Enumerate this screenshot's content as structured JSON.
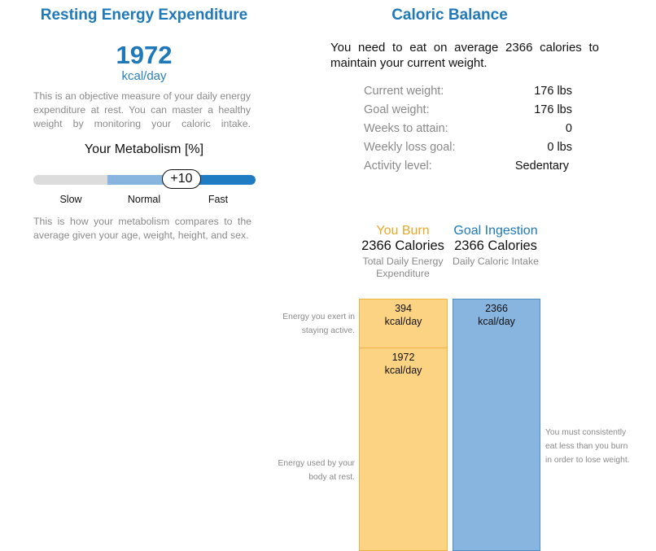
{
  "ree": {
    "title": "Resting Energy Expenditure",
    "value": "1972",
    "unit": "kcal/day",
    "description": "This is an objective measure of your daily energy expenditure at rest. You can master a healthy weight by monitoring your caloric intake.",
    "metabolism": {
      "title": "Your Metabolism [%]",
      "value": "+10",
      "value_number": 10,
      "scale_labels": [
        "Slow",
        "Normal",
        "Fast"
      ],
      "colors": {
        "slow": "#dcdcdc",
        "normal": "#88b4e0",
        "fast": "#1f7bc2"
      },
      "description": "This is how your metabolism compares to the average given your age, weight, height, and sex."
    }
  },
  "balance": {
    "title": "Caloric Balance",
    "intro_line1": "You need to eat on average 2366 calories to",
    "intro_line2": "maintain your current weight.",
    "stats": [
      {
        "label": "Current weight:",
        "value": "176 lbs"
      },
      {
        "label": "Goal weight:",
        "value": "176 lbs"
      },
      {
        "label": "Weeks to attain:",
        "value": "0"
      },
      {
        "label": "Weekly loss goal:",
        "value": "0 lbs"
      },
      {
        "label": "Activity level:",
        "value": "Sedentary"
      }
    ],
    "burn": {
      "title": "You Burn",
      "calories": "2366 Calories",
      "desc_line1": "Total Daily Energy",
      "desc_line2": "Expenditure",
      "color": "#e9a82a"
    },
    "goal": {
      "title": "Goal Ingestion",
      "calories": "2366 Calories",
      "desc": "Daily Caloric Intake",
      "color": "#2079b9"
    },
    "bars": {
      "active": {
        "value": "394",
        "unit": "kcal/day",
        "note_line1": "Energy you exert in",
        "note_line2": "staying active."
      },
      "rest": {
        "value": "1972",
        "unit": "kcal/day",
        "note_line1": "Energy used by your",
        "note_line2": "body at rest."
      },
      "intake": {
        "value": "2366",
        "unit": "kcal/day"
      },
      "intake_note_lines": [
        "You must consistently",
        "eat less than you burn",
        "in order to lose weight."
      ],
      "colors": {
        "burn_fill": "#fcd283",
        "burn_border": "#f0b340",
        "intake_fill": "#88b4e0",
        "intake_border": "#4f8cc4"
      }
    }
  }
}
